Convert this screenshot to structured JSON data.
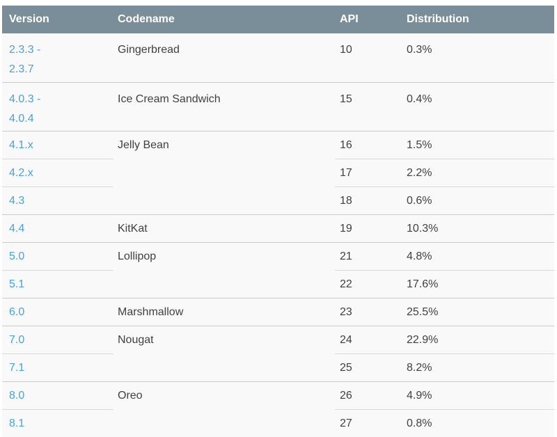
{
  "colors": {
    "header_bg": "#7a8e99",
    "header_text": "#ffffff",
    "row_bg": "#f9f9f9",
    "link_blue": "#49a2d3",
    "body_text": "#404040",
    "group_divider": "#c9c9c9",
    "sub_divider": "#d9d9d9"
  },
  "table": {
    "columns": {
      "version": "Version",
      "codename": "Codename",
      "api": "API",
      "distribution": "Distribution"
    },
    "groups": [
      {
        "codename": "Gingerbread",
        "rows": [
          {
            "version_lines": [
              "2.3.3 -",
              "2.3.7"
            ],
            "api": "10",
            "distribution": "0.3%"
          }
        ]
      },
      {
        "codename": "Ice Cream Sandwich",
        "rows": [
          {
            "version_lines": [
              "4.0.3 -",
              "4.0.4"
            ],
            "api": "15",
            "distribution": "0.4%"
          }
        ]
      },
      {
        "codename": "Jelly Bean",
        "rows": [
          {
            "version_lines": [
              "4.1.x"
            ],
            "api": "16",
            "distribution": "1.5%"
          },
          {
            "version_lines": [
              "4.2.x"
            ],
            "api": "17",
            "distribution": "2.2%"
          },
          {
            "version_lines": [
              "4.3"
            ],
            "api": "18",
            "distribution": "0.6%"
          }
        ]
      },
      {
        "codename": "KitKat",
        "rows": [
          {
            "version_lines": [
              "4.4"
            ],
            "api": "19",
            "distribution": "10.3%"
          }
        ]
      },
      {
        "codename": "Lollipop",
        "rows": [
          {
            "version_lines": [
              "5.0"
            ],
            "api": "21",
            "distribution": "4.8%"
          },
          {
            "version_lines": [
              "5.1"
            ],
            "api": "22",
            "distribution": "17.6%"
          }
        ]
      },
      {
        "codename": "Marshmallow",
        "rows": [
          {
            "version_lines": [
              "6.0"
            ],
            "api": "23",
            "distribution": "25.5%"
          }
        ]
      },
      {
        "codename": "Nougat",
        "rows": [
          {
            "version_lines": [
              "7.0"
            ],
            "api": "24",
            "distribution": "22.9%"
          },
          {
            "version_lines": [
              "7.1"
            ],
            "api": "25",
            "distribution": "8.2%"
          }
        ]
      },
      {
        "codename": "Oreo",
        "rows": [
          {
            "version_lines": [
              "8.0"
            ],
            "api": "26",
            "distribution": "4.9%"
          },
          {
            "version_lines": [
              "8.1"
            ],
            "api": "27",
            "distribution": "0.8%"
          }
        ]
      }
    ]
  }
}
